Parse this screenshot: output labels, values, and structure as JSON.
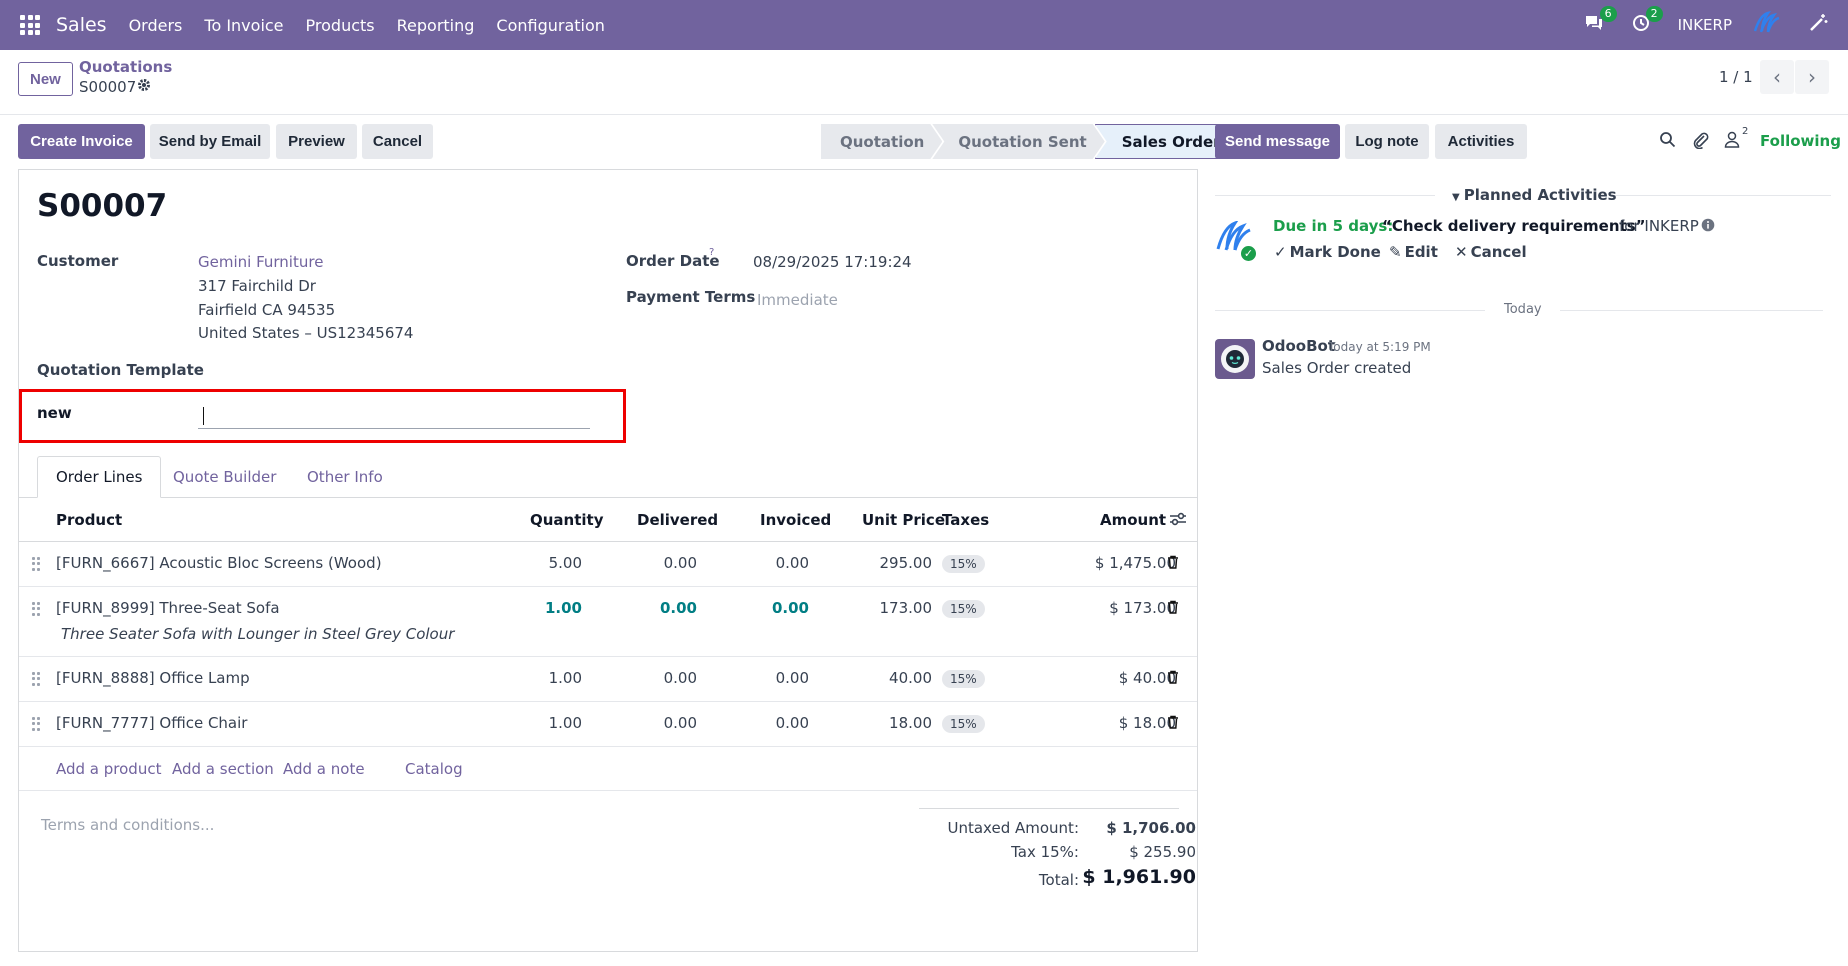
{
  "navbar": {
    "app_name": "Sales",
    "menu": [
      "Orders",
      "To Invoice",
      "Products",
      "Reporting",
      "Configuration"
    ],
    "messages_count": "6",
    "activities_count": "2",
    "company": "INKERP"
  },
  "control": {
    "new_label": "New",
    "breadcrumb_parent": "Quotations",
    "breadcrumb_current": "S00007",
    "pager": "1 / 1"
  },
  "actions": {
    "create_invoice": "Create Invoice",
    "send_email": "Send by Email",
    "preview": "Preview",
    "cancel": "Cancel"
  },
  "status": {
    "stages": [
      "Quotation",
      "Quotation Sent",
      "Sales Order"
    ],
    "active": "Sales Order"
  },
  "form": {
    "title": "S00007",
    "customer_label": "Customer",
    "customer_name": "Gemini Furniture",
    "address_line1": "317 Fairchild Dr",
    "address_line2": "Fairfield CA 94535",
    "address_line3": "United States – US12345674",
    "order_date_label": "Order Date",
    "order_date_help": "?",
    "order_date": "08/29/2025 17:19:24",
    "payment_terms_label": "Payment Terms",
    "payment_terms_placeholder": "Immediate",
    "quotation_template_label": "Quotation Template",
    "new_field_label": "new",
    "new_field_value": ""
  },
  "tabs": [
    "Order Lines",
    "Quote Builder",
    "Other Info"
  ],
  "table": {
    "headers": [
      "Product",
      "Quantity",
      "Delivered",
      "Invoiced",
      "Unit Price",
      "Taxes",
      "Amount"
    ],
    "rows": [
      {
        "product": "[FURN_6667] Acoustic Bloc Screens (Wood)",
        "qty": "5.00",
        "delivered": "0.00",
        "invoiced": "0.00",
        "price": "295.00",
        "tax": "15%",
        "amount": "$ 1,475.00"
      },
      {
        "product": "[FURN_8999] Three-Seat Sofa",
        "description": "Three Seater Sofa with Lounger in Steel Grey Colour",
        "qty": "1.00",
        "delivered": "0.00",
        "invoiced": "0.00",
        "price": "173.00",
        "tax": "15%",
        "amount": "$ 173.00"
      },
      {
        "product": "[FURN_8888] Office Lamp",
        "qty": "1.00",
        "delivered": "0.00",
        "invoiced": "0.00",
        "price": "40.00",
        "tax": "15%",
        "amount": "$ 40.00"
      },
      {
        "product": "[FURN_7777] Office Chair",
        "qty": "1.00",
        "delivered": "0.00",
        "invoiced": "0.00",
        "price": "18.00",
        "tax": "15%",
        "amount": "$ 18.00"
      }
    ],
    "add_product": "Add a product",
    "add_section": "Add a section",
    "add_note": "Add a note",
    "catalog": "Catalog"
  },
  "footer": {
    "terms_placeholder": "Terms and conditions...",
    "untaxed_label": "Untaxed Amount:",
    "untaxed_value": "$ 1,706.00",
    "tax_label": "Tax 15%:",
    "tax_value": "$ 255.90",
    "total_label": "Total:",
    "total_value": "$ 1,961.90"
  },
  "chatter": {
    "send_message": "Send message",
    "log_note": "Log note",
    "activities": "Activities",
    "followers_count": "2",
    "following": "Following",
    "planned_activities": "Planned Activities",
    "due_text": "Due in 5 days:",
    "activity_summary": "“Check delivery requirements”",
    "activity_for": "for INKERP",
    "mark_done": "Mark Done",
    "edit": "Edit",
    "cancel": "Cancel",
    "today_label": "Today",
    "msg_author": "OdooBot",
    "msg_time": "Today at 5:19 PM",
    "msg_body": "Sales Order created"
  }
}
